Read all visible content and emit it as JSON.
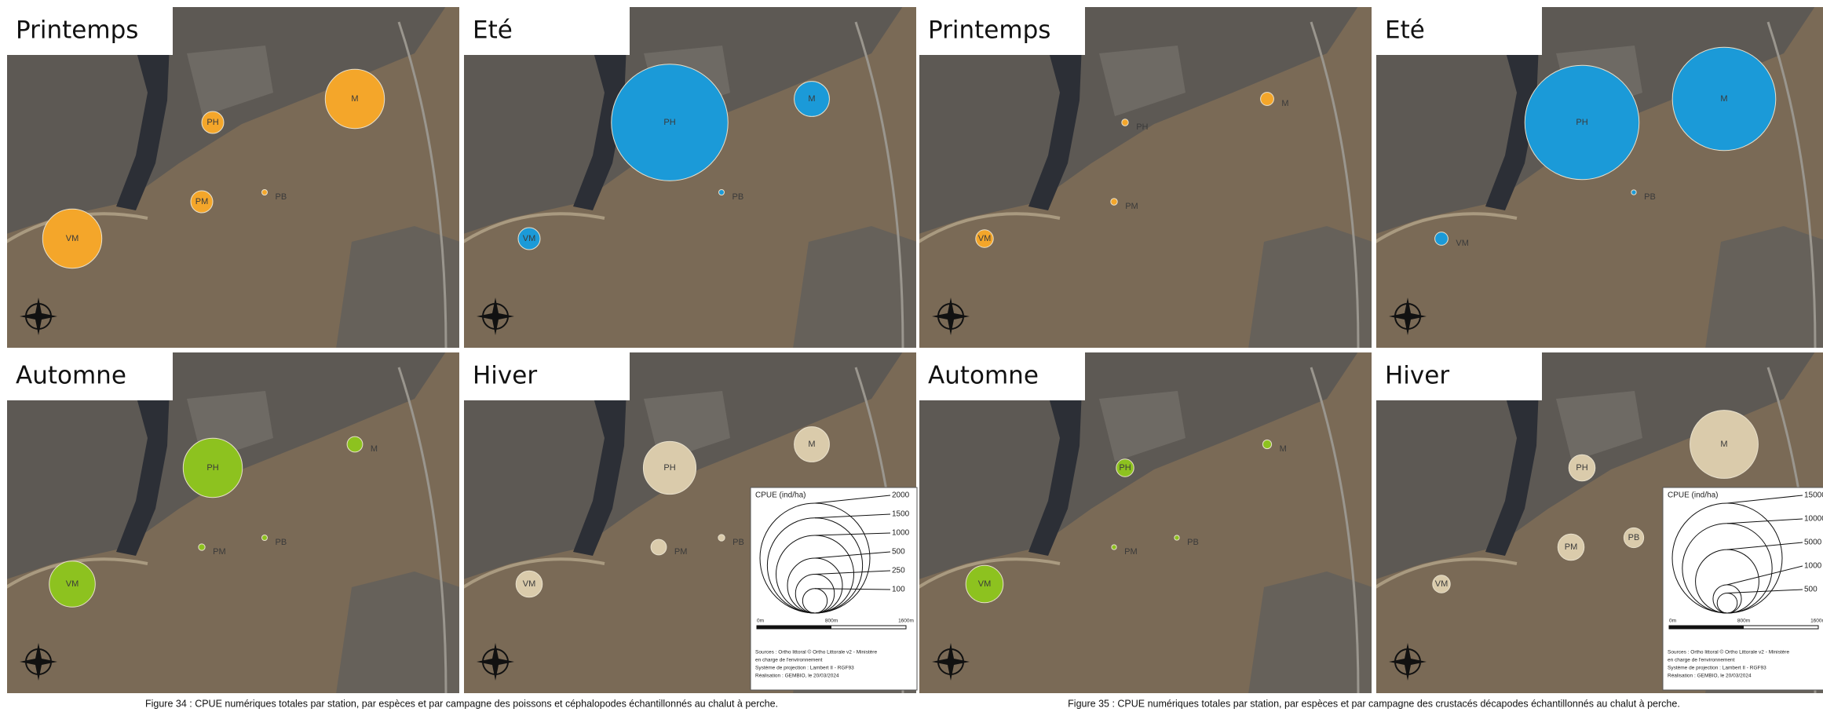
{
  "figures": [
    {
      "caption": "Figure 34 : CPUE numériques totales par station, par espèces et par campagne des poissons et céphalopodes échantillonnés au chalut à perche.",
      "legend": {
        "title": "CPUE (ind/ha)",
        "ticks": [
          2000,
          1500,
          1000,
          500,
          250,
          100
        ],
        "scale": [
          "0m",
          "800m",
          "1600m"
        ],
        "sources": [
          "Sources : Ortho littoral © Ortho Littorale v2 - Ministère",
          "en charge de l'environnement",
          "Système de projection : Lambert II - RGF93",
          "Réalisation : GEMBIO, le 20/03/2024"
        ]
      },
      "panels": [
        {
          "season": "Printemps",
          "color": "#f4a62a",
          "bubbles": [
            {
              "label": "M",
              "value": 580
            },
            {
              "label": "PH",
              "value": 80
            },
            {
              "label": "PM",
              "value": 80
            },
            {
              "label": "VM",
              "value": 580
            },
            {
              "label": "PB",
              "value": 5
            }
          ]
        },
        {
          "season": "Eté",
          "color": "#1b9ad8",
          "bubbles": [
            {
              "label": "PH",
              "value": 2250
            },
            {
              "label": "M",
              "value": 205
            },
            {
              "label": "VM",
              "value": 80
            },
            {
              "label": "PB",
              "value": 5
            }
          ]
        },
        {
          "season": "Automne",
          "color": "#8dc21f",
          "bubbles": [
            {
              "label": "PH",
              "value": 580
            },
            {
              "label": "M",
              "value": 40
            },
            {
              "label": "VM",
              "value": 350
            },
            {
              "label": "PM",
              "value": 7
            },
            {
              "label": "PB",
              "value": 5
            }
          ]
        },
        {
          "season": "Hiver",
          "color": "#dacbab",
          "bubbles": [
            {
              "label": "PH",
              "value": 460
            },
            {
              "label": "M",
              "value": 205
            },
            {
              "label": "PM",
              "value": 40
            },
            {
              "label": "VM",
              "value": 115
            },
            {
              "label": "PB",
              "value": 7
            }
          ]
        }
      ]
    },
    {
      "caption": "Figure 35 : CPUE numériques totales par station, par espèces et par campagne des crustacés décapodes échantillonnés au chalut à perche.",
      "legend": {
        "title": "CPUE (ind/ha)",
        "ticks": [
          15000,
          10000,
          5000,
          1000,
          500
        ],
        "scale": [
          "0m",
          "800m",
          "1600m"
        ],
        "sources": [
          "Sources : Ortho littoral © Ortho Littorale v2 - Ministère",
          "en charge de l'environnement",
          "Système de projection : Lambert II - RGF93",
          "Réalisation : GEMBIO, le 20/03/2024"
        ]
      },
      "panels": [
        {
          "season": "Printemps",
          "color": "#f4a62a",
          "bubbles": [
            {
              "label": "M",
              "value": 216
            },
            {
              "label": "PH",
              "value": 54
            },
            {
              "label": "PM",
              "value": 54
            },
            {
              "label": "VM",
              "value": 384
            }
          ]
        },
        {
          "season": "Eté",
          "color": "#1b9ad8",
          "bubbles": [
            {
              "label": "PH",
              "value": 16200
            },
            {
              "label": "M",
              "value": 13250
            },
            {
              "label": "VM",
              "value": 216
            },
            {
              "label": "PB",
              "value": 30
            }
          ]
        },
        {
          "season": "Automne",
          "color": "#8dc21f",
          "bubbles": [
            {
              "label": "M",
              "value": 96
            },
            {
              "label": "PH",
              "value": 384
            },
            {
              "label": "VM",
              "value": 1730
            },
            {
              "label": "PM",
              "value": 30
            },
            {
              "label": "PB",
              "value": 30
            }
          ]
        },
        {
          "season": "Hiver",
          "color": "#dacbab",
          "bubbles": [
            {
              "label": "PH",
              "value": 860
            },
            {
              "label": "M",
              "value": 5770
            },
            {
              "label": "PM",
              "value": 860
            },
            {
              "label": "PB",
              "value": 490
            },
            {
              "label": "VM",
              "value": 384
            }
          ]
        }
      ]
    }
  ]
}
